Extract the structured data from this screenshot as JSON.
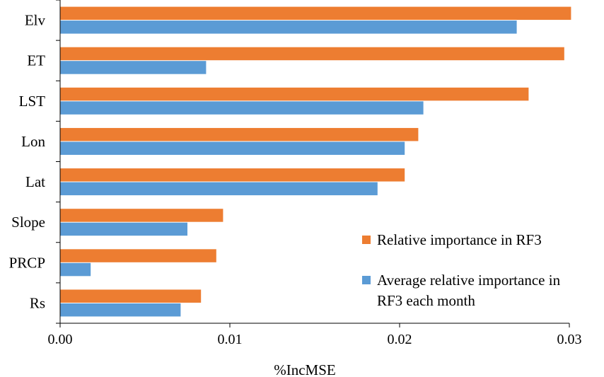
{
  "chart_data": {
    "type": "bar",
    "orientation": "horizontal",
    "categories": [
      "Elv",
      "ET",
      "LST",
      "Lon",
      "Lat",
      "Slope",
      "PRCP",
      "Rs"
    ],
    "series": [
      {
        "name": "Relative importance in RF3",
        "color": "#ED7D31",
        "values": [
          0.0301,
          0.0297,
          0.0276,
          0.0211,
          0.0203,
          0.0096,
          0.0092,
          0.0083
        ]
      },
      {
        "name": "Average relative importance in RF3 each month",
        "name_lines": [
          "Average relative importance in",
          "RF3 each month"
        ],
        "color": "#5B9BD5",
        "values": [
          0.0269,
          0.0086,
          0.0214,
          0.0203,
          0.0187,
          0.0075,
          0.0018,
          0.0071
        ]
      }
    ],
    "xlabel": "%IncMSE",
    "ylabel": "",
    "xlim": [
      0,
      0.03
    ],
    "xticks": [
      "0.00",
      "0.01",
      "0.02",
      "0.03"
    ],
    "legend_position": "bottom-right",
    "grid": false
  }
}
